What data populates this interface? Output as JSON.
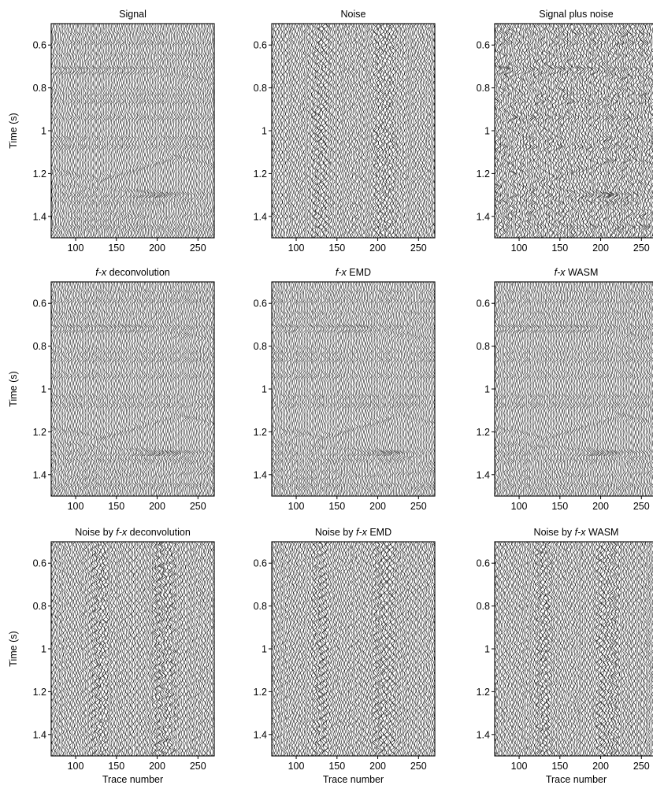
{
  "figure": {
    "ylabel": "Time (s)",
    "xlabel": "Trace number"
  },
  "chart_data": [
    {
      "type": "seismic-wiggle",
      "title": "Signal",
      "title_parts": [
        {
          "text": "Signal"
        }
      ],
      "panel": "signal",
      "x_range": [
        70,
        270
      ],
      "y_range": [
        0.5,
        1.5
      ],
      "y_reversed": true,
      "xticks": [
        100,
        150,
        200,
        250
      ],
      "yticks": [
        0.6,
        0.8,
        1,
        1.2,
        1.4
      ],
      "xtick_labels": [
        "100",
        "150",
        "200",
        "250"
      ],
      "ytick_labels": [
        "0.6",
        "0.8",
        "1",
        "1.2",
        "1.4"
      ],
      "ylabel": "Time (s)",
      "xlabel": ""
    },
    {
      "type": "seismic-wiggle",
      "title": "Noise",
      "title_parts": [
        {
          "text": "Noise"
        }
      ],
      "panel": "noise",
      "x_range": [
        70,
        270
      ],
      "y_range": [
        0.5,
        1.5
      ],
      "y_reversed": true,
      "xticks": [
        100,
        150,
        200,
        250
      ],
      "yticks": [
        0.6,
        0.8,
        1,
        1.2,
        1.4
      ],
      "xtick_labels": [
        "100",
        "150",
        "200",
        "250"
      ],
      "ytick_labels": [
        "0.6",
        "0.8",
        "1",
        "1.2",
        "1.4"
      ],
      "ylabel": "",
      "xlabel": ""
    },
    {
      "type": "seismic-wiggle",
      "title": "Signal plus noise",
      "title_parts": [
        {
          "text": "Signal plus noise"
        }
      ],
      "panel": "signal-plus-noise",
      "x_range": [
        70,
        270
      ],
      "y_range": [
        0.5,
        1.5
      ],
      "y_reversed": true,
      "xticks": [
        100,
        150,
        200,
        250
      ],
      "yticks": [
        0.6,
        0.8,
        1,
        1.2,
        1.4
      ],
      "xtick_labels": [
        "100",
        "150",
        "200",
        "250"
      ],
      "ytick_labels": [
        "0.6",
        "0.8",
        "1",
        "1.2",
        "1.4"
      ],
      "ylabel": "",
      "xlabel": ""
    },
    {
      "type": "seismic-wiggle",
      "title": "f-x deconvolution",
      "title_parts": [
        {
          "text": "f-x",
          "italic": true
        },
        {
          "text": " deconvolution"
        }
      ],
      "panel": "fx-deconvolution",
      "x_range": [
        70,
        270
      ],
      "y_range": [
        0.5,
        1.5
      ],
      "y_reversed": true,
      "xticks": [
        100,
        150,
        200,
        250
      ],
      "yticks": [
        0.6,
        0.8,
        1,
        1.2,
        1.4
      ],
      "xtick_labels": [
        "100",
        "150",
        "200",
        "250"
      ],
      "ytick_labels": [
        "0.6",
        "0.8",
        "1",
        "1.2",
        "1.4"
      ],
      "ylabel": "Time (s)",
      "xlabel": ""
    },
    {
      "type": "seismic-wiggle",
      "title": "f-x EMD",
      "title_parts": [
        {
          "text": "f-x",
          "italic": true
        },
        {
          "text": " EMD"
        }
      ],
      "panel": "fx-emd",
      "x_range": [
        70,
        270
      ],
      "y_range": [
        0.5,
        1.5
      ],
      "y_reversed": true,
      "xticks": [
        100,
        150,
        200,
        250
      ],
      "yticks": [
        0.6,
        0.8,
        1,
        1.2,
        1.4
      ],
      "xtick_labels": [
        "100",
        "150",
        "200",
        "250"
      ],
      "ytick_labels": [
        "0.6",
        "0.8",
        "1",
        "1.2",
        "1.4"
      ],
      "ylabel": "",
      "xlabel": ""
    },
    {
      "type": "seismic-wiggle",
      "title": "f-x WASM",
      "title_parts": [
        {
          "text": "f-x",
          "italic": true
        },
        {
          "text": " WASM"
        }
      ],
      "panel": "fx-wasm",
      "x_range": [
        70,
        270
      ],
      "y_range": [
        0.5,
        1.5
      ],
      "y_reversed": true,
      "xticks": [
        100,
        150,
        200,
        250
      ],
      "yticks": [
        0.6,
        0.8,
        1,
        1.2,
        1.4
      ],
      "xtick_labels": [
        "100",
        "150",
        "200",
        "250"
      ],
      "ytick_labels": [
        "0.6",
        "0.8",
        "1",
        "1.2",
        "1.4"
      ],
      "ylabel": "",
      "xlabel": ""
    },
    {
      "type": "seismic-wiggle",
      "title": "Noise by f-x deconvolution",
      "title_parts": [
        {
          "text": "Noise by "
        },
        {
          "text": "f-x",
          "italic": true
        },
        {
          "text": " deconvolution"
        }
      ],
      "panel": "noise-fx-deconvolution",
      "x_range": [
        70,
        270
      ],
      "y_range": [
        0.5,
        1.5
      ],
      "y_reversed": true,
      "xticks": [
        100,
        150,
        200,
        250
      ],
      "yticks": [
        0.6,
        0.8,
        1,
        1.2,
        1.4
      ],
      "xtick_labels": [
        "100",
        "150",
        "200",
        "250"
      ],
      "ytick_labels": [
        "0.6",
        "0.8",
        "1",
        "1.2",
        "1.4"
      ],
      "ylabel": "Time (s)",
      "xlabel": "Trace number"
    },
    {
      "type": "seismic-wiggle",
      "title": "Noise by f-x EMD",
      "title_parts": [
        {
          "text": "Noise by "
        },
        {
          "text": "f-x",
          "italic": true
        },
        {
          "text": " EMD"
        }
      ],
      "panel": "noise-fx-emd",
      "x_range": [
        70,
        270
      ],
      "y_range": [
        0.5,
        1.5
      ],
      "y_reversed": true,
      "xticks": [
        100,
        150,
        200,
        250
      ],
      "yticks": [
        0.6,
        0.8,
        1,
        1.2,
        1.4
      ],
      "xtick_labels": [
        "100",
        "150",
        "200",
        "250"
      ],
      "ytick_labels": [
        "0.6",
        "0.8",
        "1",
        "1.2",
        "1.4"
      ],
      "ylabel": "",
      "xlabel": "Trace number"
    },
    {
      "type": "seismic-wiggle",
      "title": "Noise by f-x WASM",
      "title_parts": [
        {
          "text": "Noise by "
        },
        {
          "text": "f-x",
          "italic": true
        },
        {
          "text": " WASM"
        }
      ],
      "panel": "noise-fx-wasm",
      "x_range": [
        70,
        270
      ],
      "y_range": [
        0.5,
        1.5
      ],
      "y_reversed": true,
      "xticks": [
        100,
        150,
        200,
        250
      ],
      "yticks": [
        0.6,
        0.8,
        1,
        1.2,
        1.4
      ],
      "xtick_labels": [
        "100",
        "150",
        "200",
        "250"
      ],
      "ytick_labels": [
        "0.6",
        "0.8",
        "1",
        "1.2",
        "1.4"
      ],
      "ylabel": "",
      "xlabel": "Trace number"
    }
  ]
}
